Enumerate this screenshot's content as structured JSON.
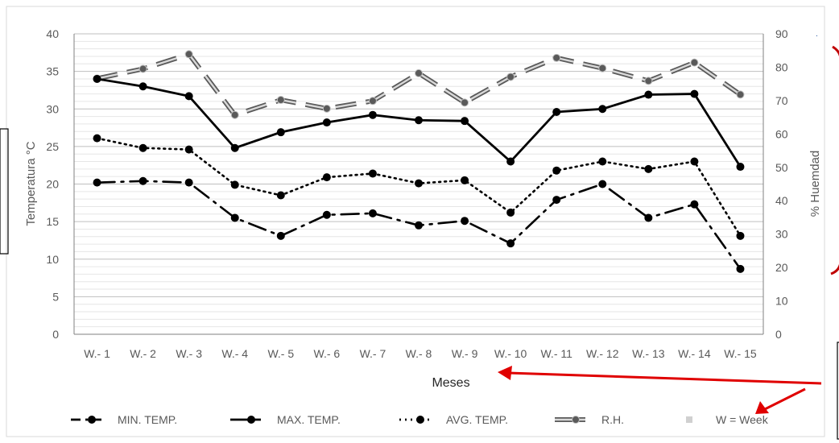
{
  "chart_data": {
    "type": "line",
    "categories": [
      "W.- 1",
      "W.- 2",
      "W.- 3",
      "W.- 4",
      "W.- 5",
      "W.- 6",
      "W.- 7",
      "W.- 8",
      "W.- 9",
      "W.- 10",
      "W.- 11",
      "W.- 12",
      "W.- 13",
      "W.- 14",
      "W.- 15"
    ],
    "xlabel": "Meses",
    "ylabel_left": "Temperatura °C",
    "ylabel_right": "% Huemdad",
    "ylim_left": [
      0,
      40
    ],
    "ylim_right": [
      0,
      90
    ],
    "yticks_left": [
      "0",
      "5",
      "10",
      "15",
      "20",
      "25",
      "30",
      "35",
      "40"
    ],
    "yticks_right": [
      "0",
      "10",
      "20",
      "30",
      "40",
      "50",
      "60",
      "70",
      "80",
      "90"
    ],
    "grid": true,
    "legend_position": "bottom",
    "legend_note": "W = Week",
    "series": [
      {
        "name": "MIN. TEMP.",
        "axis": "left",
        "style": "dashdot",
        "color": "#000000",
        "values": [
          20.2,
          20.4,
          20.2,
          15.5,
          13.1,
          15.9,
          16.1,
          14.5,
          15.1,
          12.1,
          17.9,
          20.0,
          15.5,
          17.3,
          8.7
        ]
      },
      {
        "name": "MAX. TEMP.",
        "axis": "left",
        "style": "solid",
        "color": "#000000",
        "values": [
          34.0,
          33.0,
          31.7,
          24.8,
          26.9,
          28.2,
          29.2,
          28.5,
          28.4,
          23.0,
          29.6,
          30.0,
          31.9,
          32.0,
          22.3
        ]
      },
      {
        "name": "AVG. TEMP.",
        "axis": "left",
        "style": "dotted",
        "color": "#000000",
        "values": [
          26.1,
          24.8,
          24.6,
          19.9,
          18.5,
          20.9,
          21.4,
          20.1,
          20.5,
          16.2,
          21.8,
          23.0,
          22.0,
          23.0,
          13.1
        ]
      },
      {
        "name": "R.H.",
        "axis": "right",
        "style": "double-dash",
        "color": "#5a5a5a",
        "values": [
          76.6,
          79.5,
          83.9,
          65.7,
          70.2,
          67.6,
          69.9,
          78.2,
          69.4,
          77.1,
          82.8,
          79.7,
          75.9,
          81.4,
          71.8
        ]
      }
    ]
  }
}
